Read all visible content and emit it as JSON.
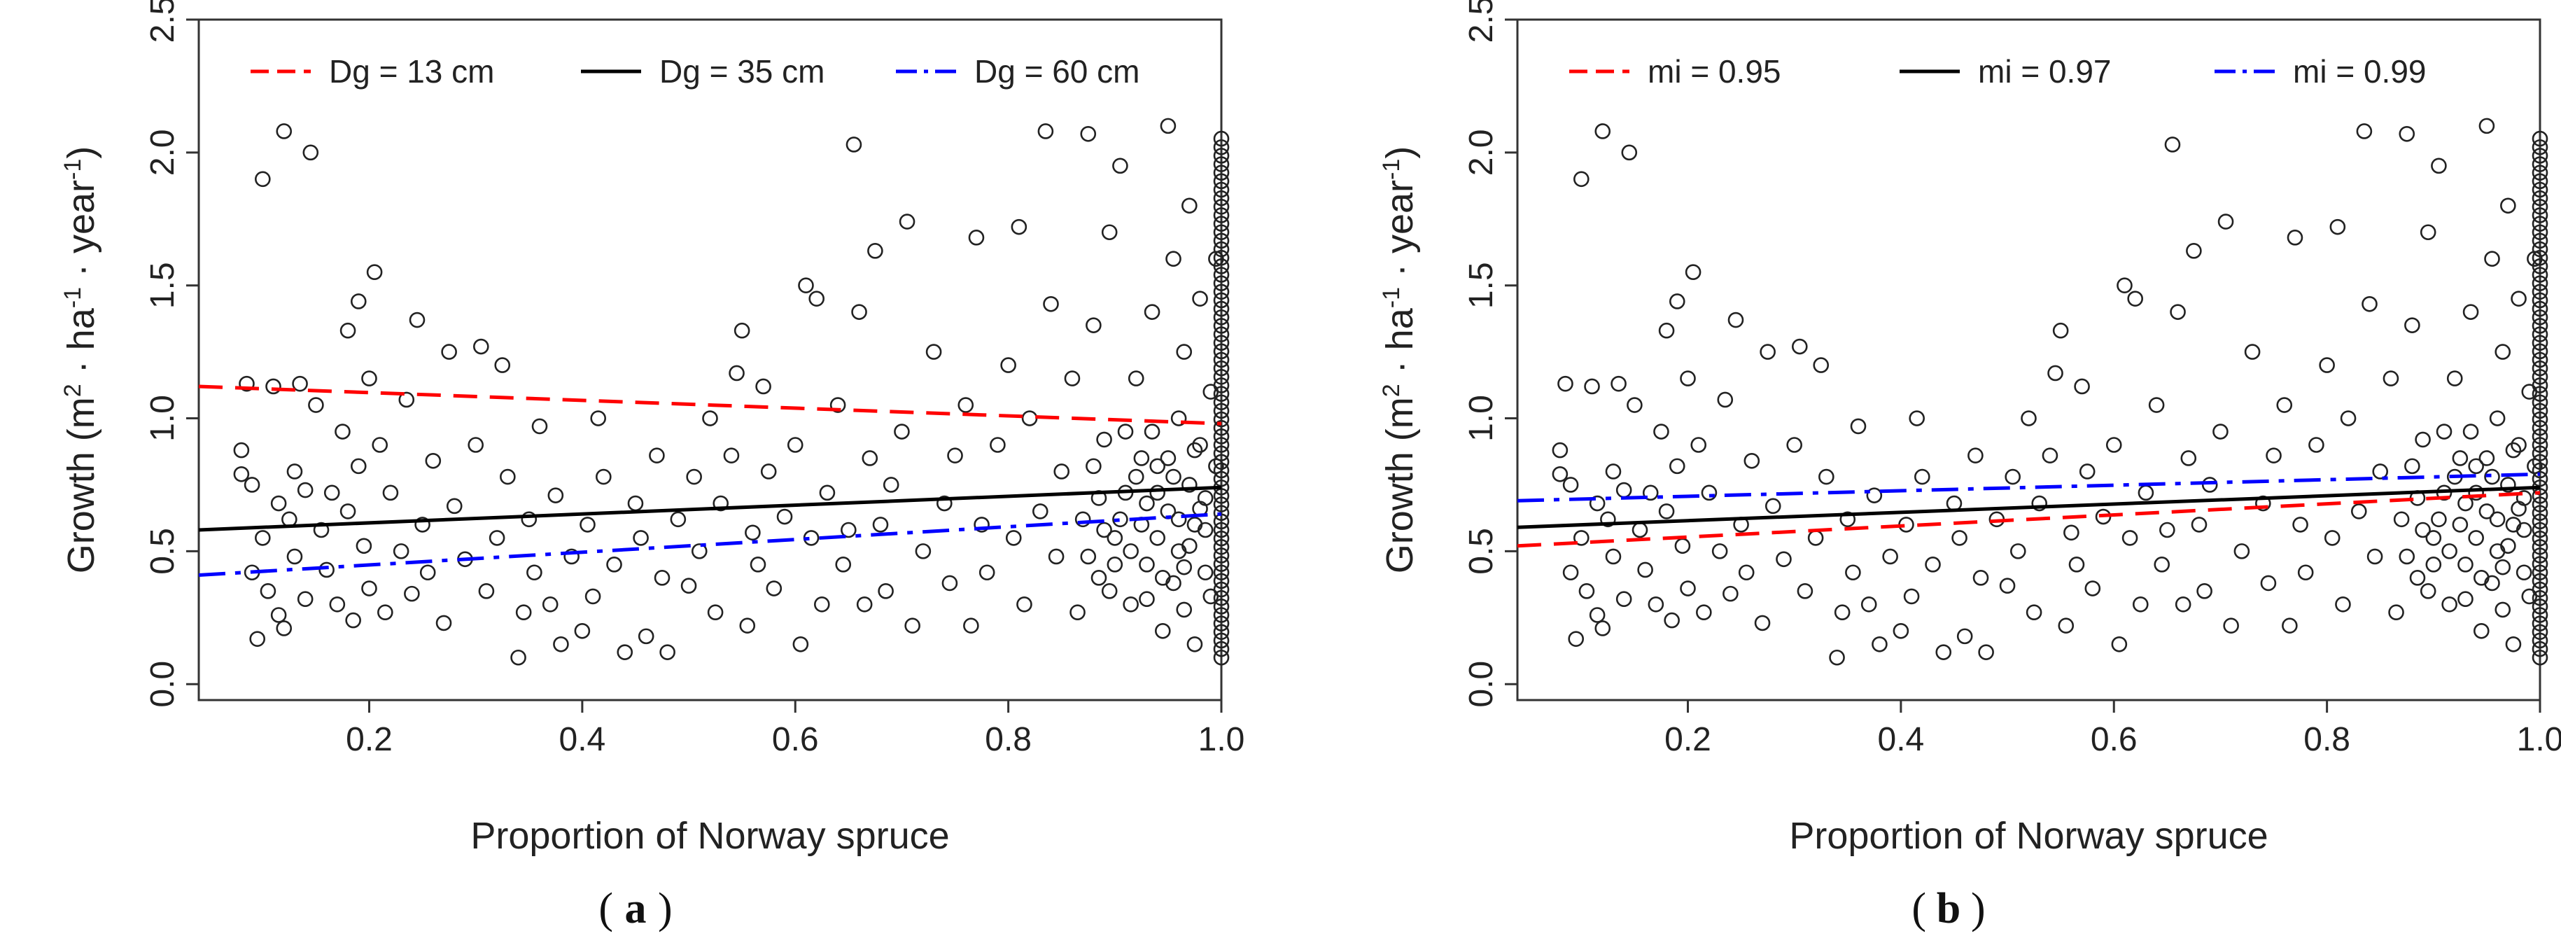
{
  "chart_data": [
    {
      "type": "scatter",
      "panel_label": "a",
      "xlabel": "Proportion of Norway spruce",
      "ylabel": "Growth (m^2 · ha^-1 · year^-1)",
      "xlim": [
        0.04,
        1.0
      ],
      "ylim": [
        -0.06,
        2.5
      ],
      "xticks": [
        "0.2",
        "0.4",
        "0.6",
        "0.8",
        "1.0"
      ],
      "yticks": [
        "0.0",
        "0.5",
        "1.0",
        "1.5",
        "2.0",
        "2.5"
      ],
      "legend_position": "top",
      "lines": [
        {
          "name": "Dg = 13 cm",
          "color": "#ff0000",
          "style": "dashed",
          "x": [
            0.04,
            1.0
          ],
          "y": [
            1.12,
            0.98
          ]
        },
        {
          "name": "Dg = 35 cm",
          "color": "#000000",
          "style": "solid",
          "x": [
            0.04,
            1.0
          ],
          "y": [
            0.58,
            0.74
          ]
        },
        {
          "name": "Dg = 60 cm",
          "color": "#0000ff",
          "style": "dashdot",
          "x": [
            0.04,
            1.0
          ],
          "y": [
            0.41,
            0.64
          ]
        }
      ]
    },
    {
      "type": "scatter",
      "panel_label": "b",
      "xlabel": "Proportion of Norway spruce",
      "ylabel": "Growth (m^2 · ha^-1 · year^-1)",
      "xlim": [
        0.04,
        1.0
      ],
      "ylim": [
        -0.06,
        2.5
      ],
      "xticks": [
        "0.2",
        "0.4",
        "0.6",
        "0.8",
        "1.0"
      ],
      "yticks": [
        "0.0",
        "0.5",
        "1.0",
        "1.5",
        "2.0",
        "2.5"
      ],
      "legend_position": "top",
      "lines": [
        {
          "name": "mi = 0.95",
          "color": "#ff0000",
          "style": "dashed",
          "x": [
            0.04,
            1.0
          ],
          "y": [
            0.52,
            0.72
          ]
        },
        {
          "name": "mi = 0.97",
          "color": "#000000",
          "style": "solid",
          "x": [
            0.04,
            1.0
          ],
          "y": [
            0.59,
            0.74
          ]
        },
        {
          "name": "mi = 0.99",
          "color": "#0000ff",
          "style": "dashdot",
          "x": [
            0.04,
            1.0
          ],
          "y": [
            0.69,
            0.79
          ]
        }
      ]
    }
  ],
  "scatter_points": [
    [
      0.08,
      0.88
    ],
    [
      0.08,
      0.79
    ],
    [
      0.085,
      1.13
    ],
    [
      0.09,
      0.75
    ],
    [
      0.09,
      0.42
    ],
    [
      0.095,
      0.17
    ],
    [
      0.1,
      0.55
    ],
    [
      0.1,
      1.9
    ],
    [
      0.105,
      0.35
    ],
    [
      0.11,
      1.12
    ],
    [
      0.115,
      0.68
    ],
    [
      0.115,
      0.26
    ],
    [
      0.12,
      2.08
    ],
    [
      0.12,
      0.21
    ],
    [
      0.125,
      0.62
    ],
    [
      0.13,
      0.8
    ],
    [
      0.13,
      0.48
    ],
    [
      0.135,
      1.13
    ],
    [
      0.14,
      0.73
    ],
    [
      0.14,
      0.32
    ],
    [
      0.145,
      2.0
    ],
    [
      0.15,
      1.05
    ],
    [
      0.155,
      0.58
    ],
    [
      0.16,
      0.43
    ],
    [
      0.165,
      0.72
    ],
    [
      0.17,
      0.3
    ],
    [
      0.175,
      0.95
    ],
    [
      0.18,
      1.33
    ],
    [
      0.18,
      0.65
    ],
    [
      0.185,
      0.24
    ],
    [
      0.19,
      0.82
    ],
    [
      0.19,
      1.44
    ],
    [
      0.195,
      0.52
    ],
    [
      0.2,
      1.15
    ],
    [
      0.2,
      0.36
    ],
    [
      0.205,
      1.55
    ],
    [
      0.21,
      0.9
    ],
    [
      0.215,
      0.27
    ],
    [
      0.22,
      0.72
    ],
    [
      0.23,
      0.5
    ],
    [
      0.235,
      1.07
    ],
    [
      0.24,
      0.34
    ],
    [
      0.245,
      1.37
    ],
    [
      0.25,
      0.6
    ],
    [
      0.255,
      0.42
    ],
    [
      0.26,
      0.84
    ],
    [
      0.27,
      0.23
    ],
    [
      0.275,
      1.25
    ],
    [
      0.28,
      0.67
    ],
    [
      0.29,
      0.47
    ],
    [
      0.3,
      0.9
    ],
    [
      0.305,
      1.27
    ],
    [
      0.31,
      0.35
    ],
    [
      0.32,
      0.55
    ],
    [
      0.325,
      1.2
    ],
    [
      0.33,
      0.78
    ],
    [
      0.34,
      0.1
    ],
    [
      0.345,
      0.27
    ],
    [
      0.35,
      0.62
    ],
    [
      0.355,
      0.42
    ],
    [
      0.36,
      0.97
    ],
    [
      0.37,
      0.3
    ],
    [
      0.375,
      0.71
    ],
    [
      0.38,
      0.15
    ],
    [
      0.39,
      0.48
    ],
    [
      0.4,
      0.2
    ],
    [
      0.405,
      0.6
    ],
    [
      0.41,
      0.33
    ],
    [
      0.415,
      1.0
    ],
    [
      0.42,
      0.78
    ],
    [
      0.43,
      0.45
    ],
    [
      0.44,
      0.12
    ],
    [
      0.45,
      0.68
    ],
    [
      0.455,
      0.55
    ],
    [
      0.46,
      0.18
    ],
    [
      0.47,
      0.86
    ],
    [
      0.475,
      0.4
    ],
    [
      0.48,
      0.12
    ],
    [
      0.49,
      0.62
    ],
    [
      0.5,
      0.37
    ],
    [
      0.505,
      0.78
    ],
    [
      0.51,
      0.5
    ],
    [
      0.52,
      1.0
    ],
    [
      0.525,
      0.27
    ],
    [
      0.53,
      0.68
    ],
    [
      0.54,
      0.86
    ],
    [
      0.545,
      1.17
    ],
    [
      0.55,
      1.33
    ],
    [
      0.555,
      0.22
    ],
    [
      0.56,
      0.57
    ],
    [
      0.565,
      0.45
    ],
    [
      0.57,
      1.12
    ],
    [
      0.575,
      0.8
    ],
    [
      0.58,
      0.36
    ],
    [
      0.59,
      0.63
    ],
    [
      0.6,
      0.9
    ],
    [
      0.605,
      0.15
    ],
    [
      0.61,
      1.5
    ],
    [
      0.615,
      0.55
    ],
    [
      0.62,
      1.45
    ],
    [
      0.625,
      0.3
    ],
    [
      0.63,
      0.72
    ],
    [
      0.64,
      1.05
    ],
    [
      0.645,
      0.45
    ],
    [
      0.65,
      0.58
    ],
    [
      0.655,
      2.03
    ],
    [
      0.66,
      1.4
    ],
    [
      0.665,
      0.3
    ],
    [
      0.67,
      0.85
    ],
    [
      0.675,
      1.63
    ],
    [
      0.68,
      0.6
    ],
    [
      0.685,
      0.35
    ],
    [
      0.69,
      0.75
    ],
    [
      0.7,
      0.95
    ],
    [
      0.705,
      1.74
    ],
    [
      0.71,
      0.22
    ],
    [
      0.72,
      0.5
    ],
    [
      0.73,
      1.25
    ],
    [
      0.74,
      0.68
    ],
    [
      0.745,
      0.38
    ],
    [
      0.75,
      0.86
    ],
    [
      0.76,
      1.05
    ],
    [
      0.765,
      0.22
    ],
    [
      0.77,
      1.68
    ],
    [
      0.775,
      0.6
    ],
    [
      0.78,
      0.42
    ],
    [
      0.79,
      0.9
    ],
    [
      0.8,
      1.2
    ],
    [
      0.805,
      0.55
    ],
    [
      0.81,
      1.72
    ],
    [
      0.815,
      0.3
    ],
    [
      0.82,
      1.0
    ],
    [
      0.83,
      0.65
    ],
    [
      0.835,
      2.08
    ],
    [
      0.84,
      1.43
    ],
    [
      0.845,
      0.48
    ],
    [
      0.85,
      0.8
    ],
    [
      0.86,
      1.15
    ],
    [
      0.865,
      0.27
    ],
    [
      0.87,
      0.62
    ],
    [
      0.875,
      2.07
    ],
    [
      0.88,
      1.35
    ],
    [
      0.885,
      0.4
    ],
    [
      0.89,
      0.92
    ],
    [
      0.895,
      1.7
    ],
    [
      0.9,
      0.55
    ],
    [
      0.905,
      1.95
    ],
    [
      0.91,
      0.72
    ],
    [
      0.915,
      0.3
    ],
    [
      0.92,
      1.15
    ],
    [
      0.925,
      0.6
    ],
    [
      0.93,
      0.45
    ],
    [
      0.935,
      1.4
    ],
    [
      0.94,
      0.82
    ],
    [
      0.945,
      0.2
    ],
    [
      0.95,
      2.1
    ],
    [
      0.95,
      0.65
    ],
    [
      0.955,
      1.6
    ],
    [
      0.955,
      0.38
    ],
    [
      0.96,
      1.0
    ],
    [
      0.96,
      0.5
    ],
    [
      0.965,
      1.25
    ],
    [
      0.965,
      0.28
    ],
    [
      0.97,
      0.75
    ],
    [
      0.97,
      1.8
    ],
    [
      0.975,
      0.6
    ],
    [
      0.975,
      0.15
    ],
    [
      0.98,
      0.9
    ],
    [
      0.98,
      1.45
    ],
    [
      0.985,
      0.42
    ],
    [
      0.985,
      0.7
    ],
    [
      0.99,
      1.1
    ],
    [
      0.99,
      0.33
    ],
    [
      0.995,
      0.82
    ],
    [
      0.995,
      1.6
    ],
    [
      0.93,
      0.68
    ],
    [
      0.94,
      0.55
    ],
    [
      0.935,
      0.95
    ],
    [
      0.945,
      0.4
    ],
    [
      0.955,
      0.78
    ],
    [
      0.925,
      0.85
    ],
    [
      0.915,
      0.5
    ],
    [
      0.905,
      0.62
    ],
    [
      0.895,
      0.35
    ],
    [
      0.885,
      0.7
    ],
    [
      0.875,
      0.48
    ],
    [
      0.96,
      0.62
    ],
    [
      0.97,
      0.52
    ],
    [
      0.95,
      0.85
    ],
    [
      0.98,
      0.66
    ],
    [
      0.94,
      0.72
    ],
    [
      0.93,
      0.32
    ],
    [
      0.92,
      0.78
    ],
    [
      0.965,
      0.44
    ],
    [
      0.975,
      0.88
    ],
    [
      0.985,
      0.58
    ],
    [
      0.9,
      0.45
    ],
    [
      0.91,
      0.95
    ],
    [
      0.89,
      0.58
    ],
    [
      0.88,
      0.82
    ]
  ]
}
